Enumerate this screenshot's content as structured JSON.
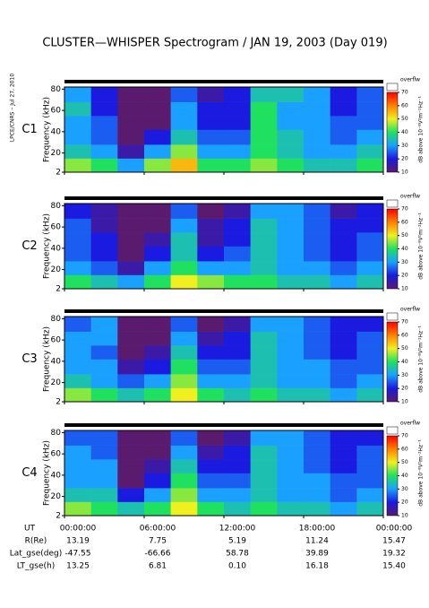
{
  "title": "CLUSTER—WHISPER Spectrogram / JAN 19, 2003 (Day 019)",
  "credit": "LPCE/CNRS – Jul 27, 2010",
  "x_axis": {
    "label": "UT",
    "xlim": [
      0,
      24
    ],
    "xticks": [
      {
        "value": 0,
        "label": "00:00:00"
      },
      {
        "value": 6,
        "label": "06:00:00"
      },
      {
        "value": 12,
        "label": "12:00:00"
      },
      {
        "value": 18,
        "label": "18:00:00"
      },
      {
        "value": 24,
        "label": "00:00:00"
      }
    ]
  },
  "orbit": [
    {
      "label": "R(Re)",
      "values": [
        "13.19",
        "7.75",
        "5.19",
        "11.24",
        "15.47"
      ]
    },
    {
      "label": "Lat_gse(deg)",
      "values": [
        "-47.55",
        "-66.66",
        "58.78",
        "39.89",
        "19.32"
      ]
    },
    {
      "label": "LT_gse(h)",
      "values": [
        "13.25",
        "6.81",
        "0.10",
        "16.18",
        "15.40"
      ]
    }
  ],
  "chart_data": [
    {
      "type": "heatmap",
      "name": "C1",
      "name_color": "#000000",
      "ylabel": "Frequency (kHz)",
      "ylim": [
        2,
        82
      ],
      "yticks": [
        2,
        20,
        40,
        60,
        80
      ],
      "xbins": [
        0,
        2,
        4,
        6,
        8,
        10,
        12,
        14,
        16,
        18,
        20,
        22,
        24
      ],
      "ybins": [
        2,
        15,
        28,
        42,
        55,
        68,
        82
      ],
      "clim": [
        10,
        70
      ],
      "cticks": [
        10,
        20,
        30,
        40,
        50,
        60,
        70
      ],
      "clabel": "dB above 10⁻⁸V²m⁻²Hz⁻¹",
      "overflow": "overflw",
      "colorscale": [
        "#5a1a6e",
        "#1a1ae0",
        "#1aa0ff",
        "#20e060",
        "#f0f020",
        "#ff8000",
        "#ff0000"
      ],
      "values": [
        [
          45,
          40,
          30,
          45,
          55,
          40,
          40,
          45,
          40,
          35,
          35,
          40
        ],
        [
          35,
          30,
          15,
          30,
          45,
          30,
          30,
          40,
          35,
          30,
          30,
          35
        ],
        [
          30,
          25,
          10,
          20,
          35,
          25,
          25,
          40,
          35,
          30,
          25,
          30
        ],
        [
          30,
          25,
          10,
          10,
          30,
          20,
          20,
          40,
          30,
          30,
          25,
          25
        ],
        [
          35,
          20,
          10,
          10,
          30,
          20,
          20,
          40,
          30,
          30,
          20,
          25
        ],
        [
          30,
          20,
          10,
          10,
          25,
          15,
          20,
          35,
          35,
          30,
          20,
          25
        ]
      ]
    },
    {
      "type": "heatmap",
      "name": "C2",
      "name_color": "#000000",
      "ylabel": "Frequency (kHz)",
      "ylim": [
        2,
        82
      ],
      "yticks": [
        2,
        20,
        40,
        60,
        80
      ],
      "xbins": [
        0,
        2,
        4,
        6,
        8,
        10,
        12,
        14,
        16,
        18,
        20,
        22,
        24
      ],
      "ybins": [
        2,
        15,
        28,
        42,
        55,
        68,
        82
      ],
      "clim": [
        10,
        70
      ],
      "cticks": [
        10,
        20,
        30,
        40,
        50,
        60,
        70
      ],
      "clabel": "dB above 10⁻⁸V²m⁻²Hz⁻¹",
      "overflow": "overflw",
      "colorscale": [
        "#5a1a6e",
        "#1a1ae0",
        "#1aa0ff",
        "#20e060",
        "#f0f020",
        "#ff8000",
        "#ff0000"
      ],
      "values": [
        [
          40,
          35,
          30,
          40,
          50,
          45,
          40,
          40,
          35,
          35,
          30,
          35
        ],
        [
          30,
          25,
          15,
          30,
          40,
          30,
          30,
          35,
          30,
          30,
          25,
          30
        ],
        [
          25,
          20,
          10,
          20,
          35,
          20,
          25,
          35,
          30,
          25,
          20,
          25
        ],
        [
          25,
          20,
          10,
          15,
          35,
          15,
          20,
          35,
          30,
          25,
          20,
          25
        ],
        [
          25,
          15,
          10,
          10,
          30,
          15,
          20,
          35,
          30,
          25,
          20,
          20
        ],
        [
          20,
          15,
          10,
          10,
          25,
          10,
          15,
          30,
          30,
          25,
          15,
          20
        ]
      ]
    },
    {
      "type": "heatmap",
      "name": "C3",
      "name_color": "#20b020",
      "ylabel": "Frequency (kHz)",
      "ylim": [
        2,
        82
      ],
      "yticks": [
        2,
        20,
        40,
        60,
        80
      ],
      "xbins": [
        0,
        2,
        4,
        6,
        8,
        10,
        12,
        14,
        16,
        18,
        20,
        22,
        24
      ],
      "ybins": [
        2,
        15,
        28,
        42,
        55,
        68,
        82
      ],
      "clim": [
        10,
        70
      ],
      "cticks": [
        10,
        20,
        30,
        40,
        50,
        60,
        70
      ],
      "clabel": "dB above 10⁻⁸V²m⁻²Hz⁻¹",
      "overflow": "overflw",
      "colorscale": [
        "#5a1a6e",
        "#1a1ae0",
        "#1aa0ff",
        "#20e060",
        "#f0f020",
        "#ff8000",
        "#ff0000"
      ],
      "values": [
        [
          45,
          40,
          35,
          40,
          50,
          40,
          35,
          40,
          35,
          35,
          30,
          35
        ],
        [
          35,
          30,
          25,
          30,
          45,
          30,
          30,
          35,
          30,
          30,
          25,
          30
        ],
        [
          30,
          30,
          15,
          20,
          40,
          25,
          25,
          35,
          30,
          30,
          25,
          25
        ],
        [
          30,
          25,
          10,
          15,
          35,
          20,
          20,
          35,
          30,
          25,
          20,
          25
        ],
        [
          30,
          30,
          10,
          10,
          30,
          15,
          20,
          35,
          30,
          25,
          20,
          25
        ],
        [
          25,
          30,
          10,
          10,
          25,
          10,
          15,
          30,
          30,
          25,
          20,
          20
        ]
      ]
    },
    {
      "type": "heatmap",
      "name": "C4",
      "name_color": "#000000",
      "ylabel": "Frequency (kHz)",
      "ylim": [
        2,
        82
      ],
      "yticks": [
        2,
        20,
        40,
        60,
        80
      ],
      "xbins": [
        0,
        2,
        4,
        6,
        8,
        10,
        12,
        14,
        16,
        18,
        20,
        22,
        24
      ],
      "ybins": [
        2,
        15,
        28,
        42,
        55,
        68,
        82
      ],
      "clim": [
        10,
        70
      ],
      "cticks": [
        10,
        20,
        30,
        40,
        50,
        60,
        70
      ],
      "clabel": "dB above 10⁻⁸V²m⁻²Hz⁻¹",
      "overflow": "overflw",
      "colorscale": [
        "#5a1a6e",
        "#1a1ae0",
        "#1aa0ff",
        "#20e060",
        "#f0f020",
        "#ff8000",
        "#ff0000"
      ],
      "values": [
        [
          45,
          40,
          35,
          40,
          50,
          40,
          35,
          40,
          35,
          35,
          30,
          35
        ],
        [
          35,
          35,
          20,
          30,
          45,
          30,
          30,
          35,
          30,
          30,
          25,
          30
        ],
        [
          30,
          30,
          10,
          20,
          40,
          25,
          25,
          35,
          30,
          30,
          25,
          25
        ],
        [
          30,
          30,
          10,
          15,
          35,
          20,
          20,
          35,
          30,
          25,
          20,
          25
        ],
        [
          30,
          25,
          10,
          10,
          30,
          15,
          20,
          35,
          30,
          25,
          20,
          25
        ],
        [
          25,
          25,
          10,
          10,
          25,
          10,
          15,
          30,
          30,
          25,
          20,
          20
        ]
      ]
    }
  ]
}
